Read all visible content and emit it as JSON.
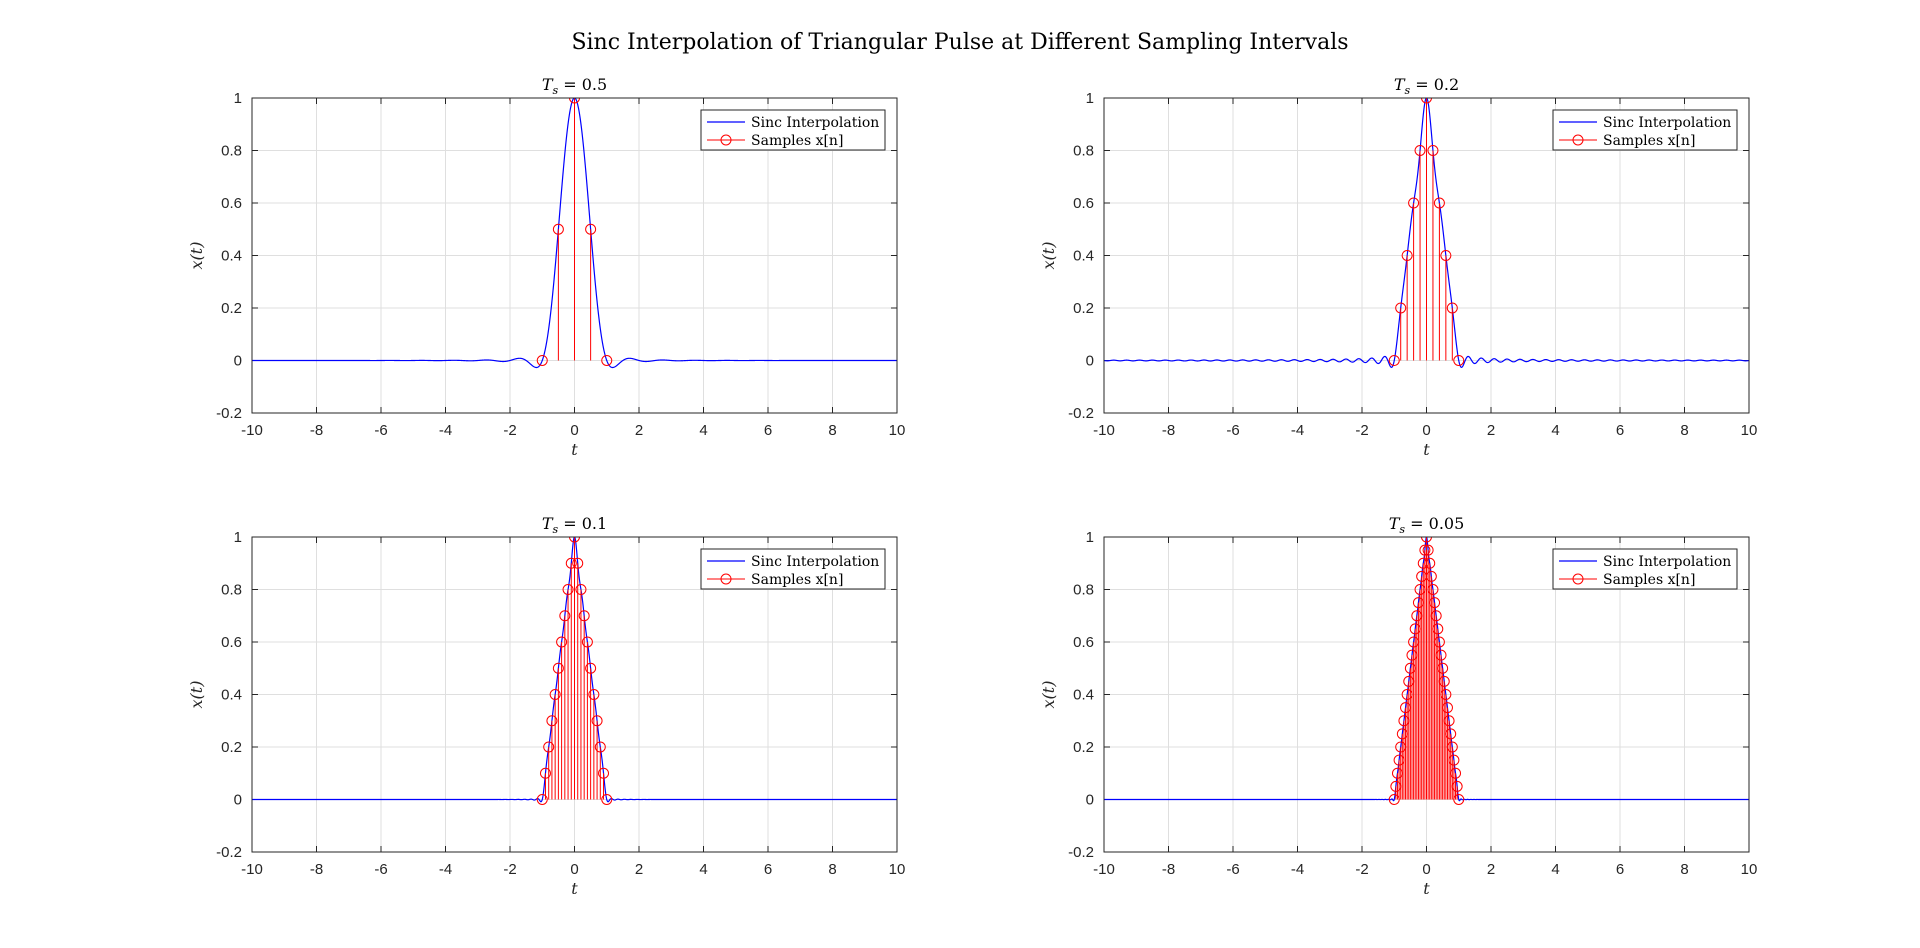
{
  "figure_title": "Sinc Interpolation of Triangular Pulse at Different Sampling Intervals",
  "colors": {
    "interp": "#0000ff",
    "samples": "#ff0000",
    "grid": "#dfdfdf",
    "axis": "#262626"
  },
  "chart_data": [
    {
      "type": "line",
      "title": "T_s = 0.5",
      "title_sub": "s",
      "title_value": " = 0.5",
      "Ts": 0.5,
      "xlabel": "t",
      "ylabel": "x(t)",
      "xlim": [
        -10,
        10
      ],
      "ylim": [
        -0.2,
        1
      ],
      "xticks": [
        "-10",
        "-8",
        "-6",
        "-4",
        "-2",
        "0",
        "2",
        "4",
        "6",
        "8",
        "10"
      ],
      "yticks": [
        "-0.2",
        "0",
        "0.2",
        "0.4",
        "0.6",
        "0.8",
        "1"
      ],
      "grid": true,
      "legend": {
        "position": "top-right",
        "entries": [
          "Sinc Interpolation",
          "Samples x[n]"
        ]
      },
      "series": [
        {
          "name": "Sinc Interpolation",
          "kind": "line",
          "function": "sum_n x[n]*sinc((t - nTs)/Ts)"
        },
        {
          "name": "Samples x[n]",
          "kind": "stem",
          "x": [
            -1,
            -0.5,
            0,
            0.5,
            1
          ],
          "values": [
            0,
            0.5,
            1,
            0.5,
            0
          ]
        }
      ]
    },
    {
      "type": "line",
      "title": "T_s = 0.2",
      "title_sub": "s",
      "title_value": " = 0.2",
      "Ts": 0.2,
      "xlabel": "t",
      "ylabel": "x(t)",
      "xlim": [
        -10,
        10
      ],
      "ylim": [
        -0.2,
        1
      ],
      "xticks": [
        "-10",
        "-8",
        "-6",
        "-4",
        "-2",
        "0",
        "2",
        "4",
        "6",
        "8",
        "10"
      ],
      "yticks": [
        "-0.2",
        "0",
        "0.2",
        "0.4",
        "0.6",
        "0.8",
        "1"
      ],
      "grid": true,
      "legend": {
        "position": "top-right",
        "entries": [
          "Sinc Interpolation",
          "Samples x[n]"
        ]
      },
      "series": [
        {
          "name": "Sinc Interpolation",
          "kind": "line",
          "function": "sum_n x[n]*sinc((t - nTs)/Ts)"
        },
        {
          "name": "Samples x[n]",
          "kind": "stem",
          "x": [
            -1,
            -0.8,
            -0.6,
            -0.4,
            -0.2,
            0,
            0.2,
            0.4,
            0.6,
            0.8,
            1
          ],
          "values": [
            0,
            0.2,
            0.4,
            0.6,
            0.8,
            1,
            0.8,
            0.6,
            0.4,
            0.2,
            0
          ]
        }
      ]
    },
    {
      "type": "line",
      "title": "T_s = 0.1",
      "title_sub": "s",
      "title_value": " = 0.1",
      "Ts": 0.1,
      "xlabel": "t",
      "ylabel": "x(t)",
      "xlim": [
        -10,
        10
      ],
      "ylim": [
        -0.2,
        1
      ],
      "xticks": [
        "-10",
        "-8",
        "-6",
        "-4",
        "-2",
        "0",
        "2",
        "4",
        "6",
        "8",
        "10"
      ],
      "yticks": [
        "-0.2",
        "0",
        "0.2",
        "0.4",
        "0.6",
        "0.8",
        "1"
      ],
      "grid": true,
      "legend": {
        "position": "top-right",
        "entries": [
          "Sinc Interpolation",
          "Samples x[n]"
        ]
      },
      "series": [
        {
          "name": "Sinc Interpolation",
          "kind": "line",
          "function": "sum_n x[n]*sinc((t - nTs)/Ts)"
        },
        {
          "name": "Samples x[n]",
          "kind": "stem",
          "x": [
            -1,
            -0.9,
            -0.8,
            -0.7,
            -0.6,
            -0.5,
            -0.4,
            -0.3,
            -0.2,
            -0.1,
            0,
            0.1,
            0.2,
            0.3,
            0.4,
            0.5,
            0.6,
            0.7,
            0.8,
            0.9,
            1
          ],
          "values": [
            0,
            0.1,
            0.2,
            0.3,
            0.4,
            0.5,
            0.6,
            0.7,
            0.8,
            0.9,
            1,
            0.9,
            0.8,
            0.7,
            0.6,
            0.5,
            0.4,
            0.3,
            0.2,
            0.1,
            0
          ]
        }
      ]
    },
    {
      "type": "line",
      "title": "T_s = 0.05",
      "title_sub": "s",
      "title_value": " = 0.05",
      "Ts": 0.05,
      "xlabel": "t",
      "ylabel": "x(t)",
      "xlim": [
        -10,
        10
      ],
      "ylim": [
        -0.2,
        1
      ],
      "xticks": [
        "-10",
        "-8",
        "-6",
        "-4",
        "-2",
        "0",
        "2",
        "4",
        "6",
        "8",
        "10"
      ],
      "yticks": [
        "-0.2",
        "0",
        "0.2",
        "0.4",
        "0.6",
        "0.8",
        "1"
      ],
      "grid": true,
      "legend": {
        "position": "top-right",
        "entries": [
          "Sinc Interpolation",
          "Samples x[n]"
        ]
      },
      "series": [
        {
          "name": "Sinc Interpolation",
          "kind": "line",
          "function": "sum_n x[n]*sinc((t - nTs)/Ts)"
        },
        {
          "name": "Samples x[n]",
          "kind": "stem",
          "x": [
            -1,
            -0.95,
            -0.9,
            -0.85,
            -0.8,
            -0.75,
            -0.7,
            -0.65,
            -0.6,
            -0.55,
            -0.5,
            -0.45,
            -0.4,
            -0.35,
            -0.3,
            -0.25,
            -0.2,
            -0.15,
            -0.1,
            -0.05,
            0,
            0.05,
            0.1,
            0.15,
            0.2,
            0.25,
            0.3,
            0.35,
            0.4,
            0.45,
            0.5,
            0.55,
            0.6,
            0.65,
            0.7,
            0.75,
            0.8,
            0.85,
            0.9,
            0.95,
            1
          ],
          "values": [
            0,
            0.05,
            0.1,
            0.15,
            0.2,
            0.25,
            0.3,
            0.35,
            0.4,
            0.45,
            0.5,
            0.55,
            0.6,
            0.65,
            0.7,
            0.75,
            0.8,
            0.85,
            0.9,
            0.95,
            1,
            0.95,
            0.9,
            0.85,
            0.8,
            0.75,
            0.7,
            0.65,
            0.6,
            0.55,
            0.5,
            0.45,
            0.4,
            0.35,
            0.3,
            0.25,
            0.2,
            0.15,
            0.1,
            0.05,
            0
          ]
        }
      ]
    }
  ]
}
